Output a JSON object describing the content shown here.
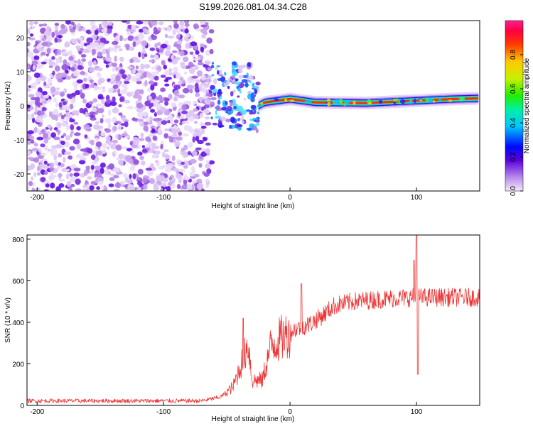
{
  "title": "S199.2026.081.04.34.C28",
  "chart_data": [
    {
      "type": "heatmap",
      "xlabel": "Height of straight line (km)",
      "ylabel": "Frequency (Hz)",
      "xlim": [
        -208,
        150
      ],
      "ylim": [
        -25,
        25
      ],
      "xticks": [
        -200,
        -100,
        0,
        100
      ],
      "yticks": [
        -20,
        -10,
        0,
        10,
        20
      ],
      "xtick_labels": [
        "-200",
        "-100",
        "0",
        "100"
      ],
      "ytick_labels": [
        "-20",
        "-10",
        "0",
        "10",
        "20"
      ],
      "noise_region": {
        "x_range": [
          -208,
          -62
        ],
        "freq_range": [
          -25,
          25
        ]
      },
      "transition_region": {
        "x_range": [
          -62,
          -25
        ],
        "freq_range": [
          -10,
          18
        ]
      },
      "ridge": [
        {
          "x": -25,
          "f": 0.0
        },
        {
          "x": -20,
          "f": 1.0
        },
        {
          "x": -10,
          "f": 1.5
        },
        {
          "x": 0,
          "f": 2.0
        },
        {
          "x": 20,
          "f": 1.0
        },
        {
          "x": 60,
          "f": 0.8
        },
        {
          "x": 100,
          "f": 1.5
        },
        {
          "x": 130,
          "f": 2.0
        },
        {
          "x": 150,
          "f": 2.2
        }
      ],
      "colorbar": {
        "label": "Normalized spectral amplitude",
        "range": [
          0,
          1
        ],
        "ticks": [
          0.0,
          0.2,
          0.4,
          0.6,
          0.8
        ],
        "tick_labels": [
          "0.0",
          "0.2",
          "0.4",
          "0.6",
          "0.8"
        ]
      }
    },
    {
      "type": "line",
      "xlabel": "Height of straight line (km)",
      "ylabel": "SNR (10 * v/v)",
      "xlim": [
        -208,
        150
      ],
      "ylim": [
        0,
        820
      ],
      "xticks": [
        -200,
        -100,
        0,
        100
      ],
      "yticks": [
        0,
        200,
        400,
        600,
        800
      ],
      "xtick_labels": [
        "-200",
        "-100",
        "0",
        "100"
      ],
      "ytick_labels": [
        "0",
        "200",
        "400",
        "600",
        "800"
      ],
      "color": "#ee3333",
      "envelope": [
        {
          "x": -208,
          "y": 22
        },
        {
          "x": -70,
          "y": 22
        },
        {
          "x": -55,
          "y": 40
        },
        {
          "x": -45,
          "y": 90
        },
        {
          "x": -38,
          "y": 210
        },
        {
          "x": -33,
          "y": 300
        },
        {
          "x": -30,
          "y": 120
        },
        {
          "x": -22,
          "y": 120
        },
        {
          "x": -15,
          "y": 290
        },
        {
          "x": -5,
          "y": 330
        },
        {
          "x": 5,
          "y": 370
        },
        {
          "x": 15,
          "y": 390
        },
        {
          "x": 25,
          "y": 430
        },
        {
          "x": 35,
          "y": 480
        },
        {
          "x": 50,
          "y": 500
        },
        {
          "x": 80,
          "y": 515
        },
        {
          "x": 100,
          "y": 520
        },
        {
          "x": 150,
          "y": 520
        }
      ],
      "spikes": [
        {
          "x": -37,
          "y": 420
        },
        {
          "x": 9,
          "y": 585
        },
        {
          "x": 98,
          "y": 700
        },
        {
          "x": 100,
          "y": 820
        },
        {
          "x": 101,
          "y": 150
        }
      ]
    }
  ]
}
